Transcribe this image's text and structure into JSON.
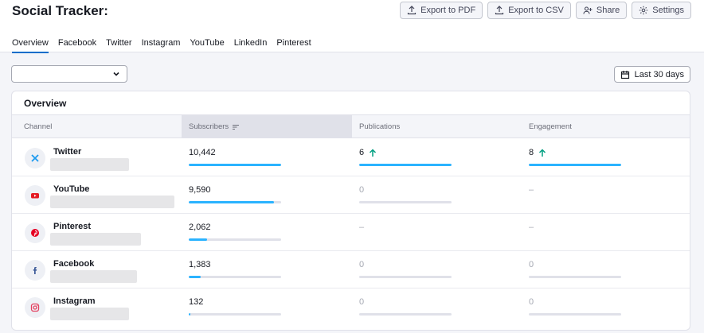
{
  "header": {
    "title": "Social Tracker:",
    "actions": [
      {
        "label": "Export to PDF",
        "icon": "upload-icon"
      },
      {
        "label": "Export to CSV",
        "icon": "upload-icon"
      },
      {
        "label": "Share",
        "icon": "add-user-icon"
      },
      {
        "label": "Settings",
        "icon": "gear-icon"
      }
    ]
  },
  "tabs": [
    {
      "label": "Overview",
      "active": true
    },
    {
      "label": "Facebook"
    },
    {
      "label": "Twitter"
    },
    {
      "label": "Instagram"
    },
    {
      "label": "YouTube"
    },
    {
      "label": "LinkedIn"
    },
    {
      "label": "Pinterest"
    }
  ],
  "filters": {
    "select_value": "",
    "date_range": "Last 30 days"
  },
  "overview": {
    "title": "Overview",
    "columns": {
      "channel": "Channel",
      "subscribers": "Subscribers",
      "publications": "Publications",
      "engagement": "Engagement"
    },
    "rows": [
      {
        "channel": "Twitter",
        "icon": "twitter-x-icon",
        "icon_color": "#1d9bf0",
        "subscribers": "10,442",
        "subscribers_fill": 1.0,
        "publications": "6",
        "publications_trend": "up",
        "publications_fill": 1.0,
        "engagement": "8",
        "engagement_trend": "up",
        "engagement_fill": 1.0
      },
      {
        "channel": "YouTube",
        "icon": "youtube-icon",
        "icon_color": "#e41b23",
        "subscribers": "9,590",
        "subscribers_fill": 0.92,
        "publications": "0",
        "publications_fill": 0,
        "engagement": "–"
      },
      {
        "channel": "Pinterest",
        "icon": "pinterest-icon",
        "icon_color": "#e60023",
        "subscribers": "2,062",
        "subscribers_fill": 0.2,
        "publications": "–",
        "engagement": "–"
      },
      {
        "channel": "Facebook",
        "icon": "facebook-icon",
        "icon_color": "#1877f2",
        "subscribers": "1,383",
        "subscribers_fill": 0.13,
        "publications": "0",
        "publications_fill": 0,
        "engagement": "0",
        "engagement_fill": 0
      },
      {
        "channel": "Instagram",
        "icon": "instagram-icon",
        "icon_color": "#e4405f",
        "subscribers": "132",
        "subscribers_fill": 0.013,
        "publications": "0",
        "publications_fill": 0,
        "engagement": "0",
        "engagement_fill": 0
      }
    ]
  },
  "colors": {
    "accent": "#006dca",
    "bar_fill": "#2bb3ff",
    "trend_up": "#009f81"
  }
}
